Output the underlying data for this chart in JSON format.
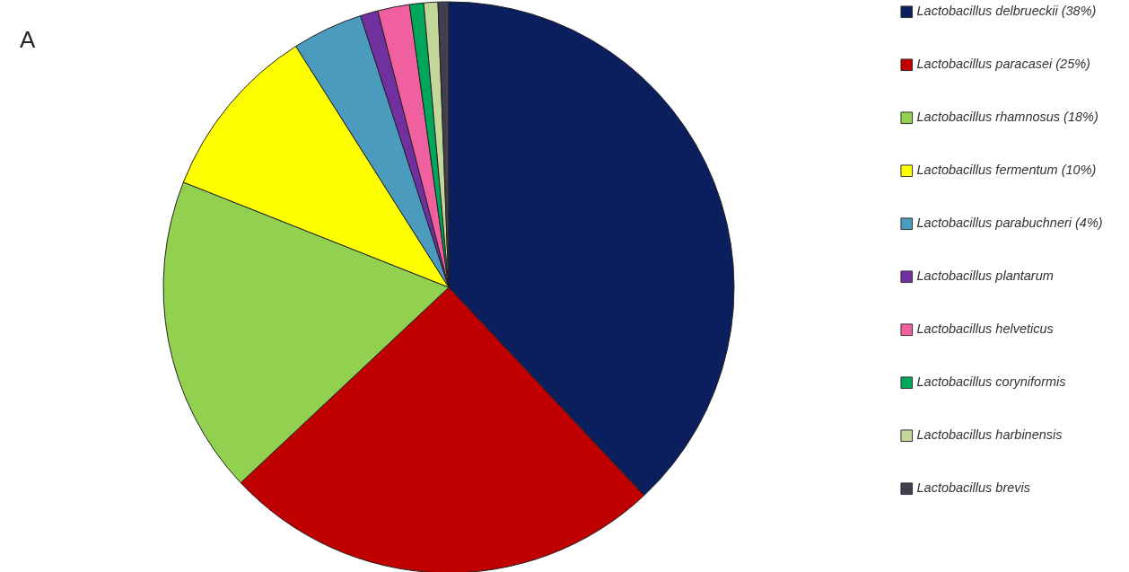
{
  "chart_data": {
    "type": "pie",
    "title": "A",
    "categories": [
      "Lactobacillus delbrueckii (38%)",
      "Lactobacillus paracasei (25%)",
      "Lactobacillus rhamnosus (18%)",
      "Lactobacillus fermentum (10%)",
      "Lactobacillus parabuchneri (4%)",
      "Lactobacillus plantarum",
      "Lactobacillus helveticus",
      "Lactobacillus coryniformis",
      "Lactobacillus harbinensis",
      "Lactobacillus brevis"
    ],
    "values": [
      38,
      25,
      18,
      10,
      4,
      1,
      1.8,
      0.8,
      0.8,
      0.6
    ],
    "colors": [
      "#0b1f5e",
      "#c00000",
      "#92d050",
      "#ffff00",
      "#4a9bbd",
      "#7030a0",
      "#f0609e",
      "#00a65a",
      "#c4d79b",
      "#3f3f4f"
    ],
    "legend": "right"
  }
}
